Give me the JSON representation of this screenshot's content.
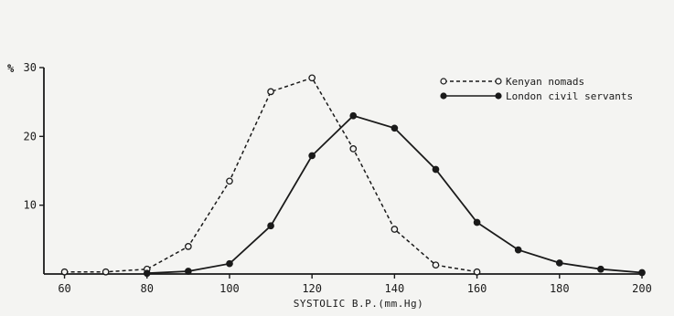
{
  "chart_data": {
    "type": "line",
    "title": "",
    "xlabel": "SYSTOLIC B.P.(mm.Hg)",
    "ylabel": "%",
    "xlim": [
      55,
      200
    ],
    "ylim": [
      0,
      30
    ],
    "x_ticks": [
      60,
      80,
      100,
      120,
      140,
      160,
      180,
      200
    ],
    "y_ticks": [
      10,
      20,
      30
    ],
    "grid": false,
    "legend_position": "top-right",
    "series": [
      {
        "name": "Kenyan nomads",
        "style": "dashed",
        "marker": "open-circle",
        "color": "#1a1a1a",
        "x": [
          60,
          70,
          80,
          90,
          100,
          110,
          120,
          130,
          140,
          150,
          160
        ],
        "y": [
          0.3,
          0.3,
          0.7,
          4.0,
          13.5,
          26.5,
          28.5,
          18.2,
          6.5,
          1.3,
          0.3
        ]
      },
      {
        "name": "London civil servants",
        "style": "solid",
        "marker": "filled-circle",
        "color": "#1a1a1a",
        "x": [
          80,
          90,
          100,
          110,
          120,
          130,
          140,
          150,
          160,
          170,
          180,
          190,
          200
        ],
        "y": [
          0.1,
          0.4,
          1.5,
          7.0,
          17.2,
          23.0,
          21.2,
          15.2,
          7.5,
          3.5,
          1.6,
          0.7,
          0.2
        ]
      }
    ]
  }
}
